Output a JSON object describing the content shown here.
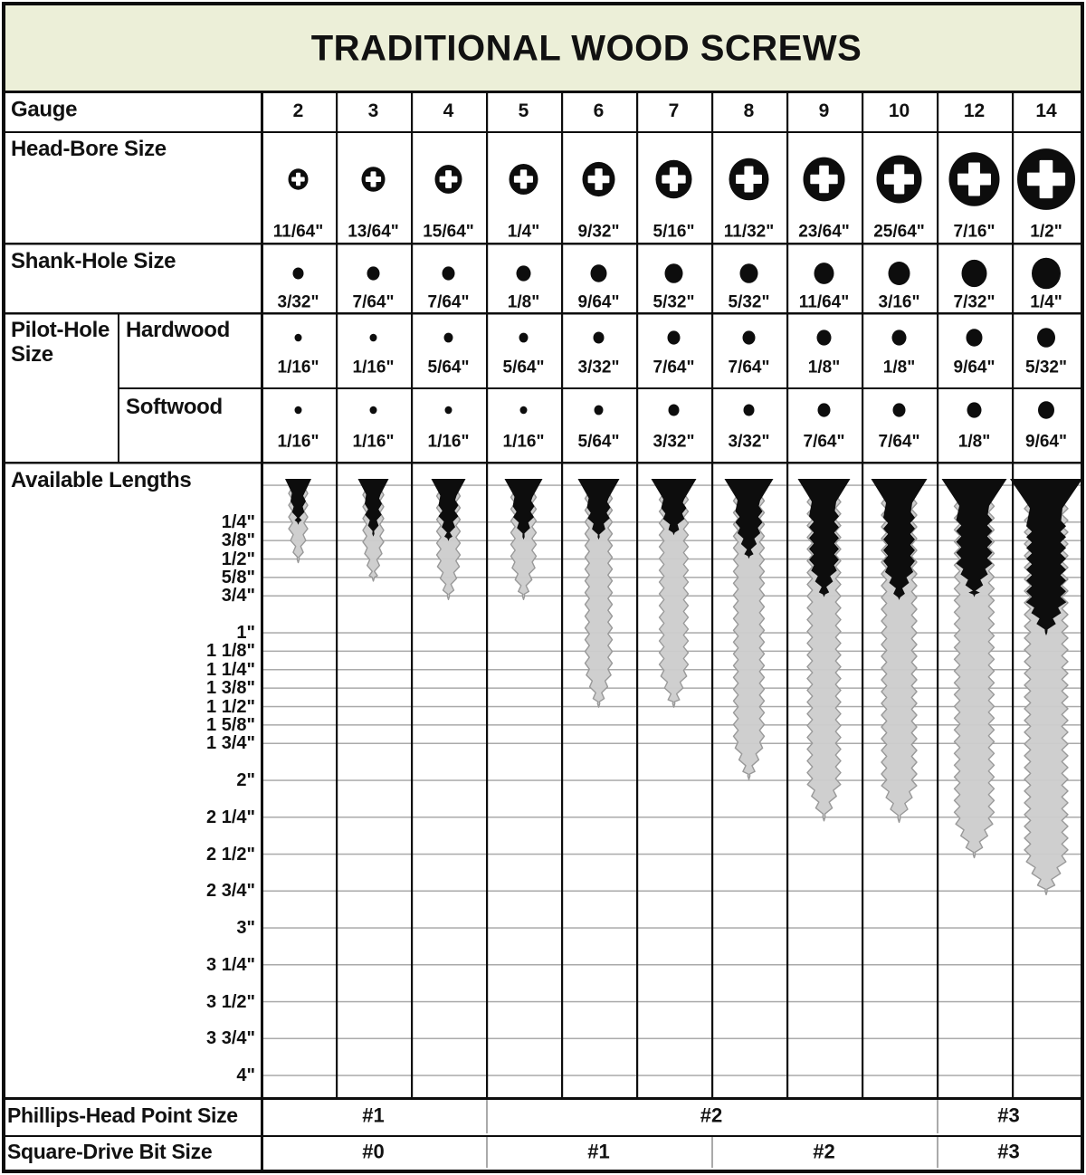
{
  "title": "TRADITIONAL WOOD SCREWS",
  "colors": {
    "band": "#ECEFD8",
    "ink": "#0d0d0d",
    "thread_fill": "#CCCCCC",
    "thread_stroke": "#999999",
    "gridline": "#AAAAAA",
    "icon_black": "#0d0d0d",
    "icon_cross": "#FFFFFF"
  },
  "labels": {
    "gauge": "Gauge",
    "head_bore": "Head-Bore Size",
    "shank_hole": "Shank-Hole Size",
    "pilot_hole": "Pilot-Hole Size",
    "hardwood": "Hardwood",
    "softwood": "Softwood",
    "available_lengths": "Available Lengths",
    "phillips": "Phillips-Head Point Size",
    "square": "Square-Drive Bit Size"
  },
  "chart_data": {
    "type": "table",
    "title": "TRADITIONAL WOOD SCREWS",
    "gauges": [
      "2",
      "3",
      "4",
      "5",
      "6",
      "7",
      "8",
      "9",
      "10",
      "12",
      "14"
    ],
    "head_bore_size": [
      "11/64\"",
      "13/64\"",
      "15/64\"",
      "1/4\"",
      "9/32\"",
      "5/16\"",
      "11/32\"",
      "23/64\"",
      "25/64\"",
      "7/16\"",
      "1/2\""
    ],
    "head_bore_in": [
      0.171875,
      0.203125,
      0.234375,
      0.25,
      0.28125,
      0.3125,
      0.34375,
      0.359375,
      0.390625,
      0.4375,
      0.5
    ],
    "shank_hole_size": [
      "3/32\"",
      "7/64\"",
      "7/64\"",
      "1/8\"",
      "9/64\"",
      "5/32\"",
      "5/32\"",
      "11/64\"",
      "3/16\"",
      "7/32\"",
      "1/4\""
    ],
    "shank_hole_in": [
      0.09375,
      0.109375,
      0.109375,
      0.125,
      0.140625,
      0.15625,
      0.15625,
      0.171875,
      0.1875,
      0.21875,
      0.25
    ],
    "pilot_hardwood_size": [
      "1/16\"",
      "1/16\"",
      "5/64\"",
      "5/64\"",
      "3/32\"",
      "7/64\"",
      "7/64\"",
      "1/8\"",
      "1/8\"",
      "9/64\"",
      "5/32\""
    ],
    "pilot_hardwood_in": [
      0.0625,
      0.0625,
      0.078125,
      0.078125,
      0.09375,
      0.109375,
      0.109375,
      0.125,
      0.125,
      0.140625,
      0.15625
    ],
    "pilot_softwood_size": [
      "1/16\"",
      "1/16\"",
      "1/16\"",
      "1/16\"",
      "5/64\"",
      "3/32\"",
      "3/32\"",
      "7/64\"",
      "7/64\"",
      "1/8\"",
      "9/64\""
    ],
    "pilot_softwood_in": [
      0.0625,
      0.0625,
      0.0625,
      0.0625,
      0.078125,
      0.09375,
      0.09375,
      0.109375,
      0.109375,
      0.125,
      0.140625
    ],
    "length_scale_labels": [
      "1/4\"",
      "3/8\"",
      "1/2\"",
      "5/8\"",
      "3/4\"",
      "1\"",
      "1 1/8\"",
      "1 1/4\"",
      "1 3/8\"",
      "1 1/2\"",
      "1 5/8\"",
      "1 3/4\"",
      "2\"",
      "2 1/4\"",
      "2 1/2\"",
      "2 3/4\"",
      "3\"",
      "3 1/4\"",
      "3 1/2\"",
      "3 3/4\"",
      "4\""
    ],
    "length_scale_in": [
      0.25,
      0.375,
      0.5,
      0.625,
      0.75,
      1,
      1.125,
      1.25,
      1.375,
      1.5,
      1.625,
      1.75,
      2,
      2.25,
      2.5,
      2.75,
      3,
      3.25,
      3.5,
      3.75,
      4
    ],
    "screws": [
      {
        "gauge": "2",
        "min_in": 0.25,
        "max_in": 0.5
      },
      {
        "gauge": "3",
        "min_in": 0.33,
        "max_in": 0.625
      },
      {
        "gauge": "4",
        "min_in": 0.36,
        "max_in": 0.75
      },
      {
        "gauge": "5",
        "min_in": 0.35,
        "max_in": 0.75
      },
      {
        "gauge": "6",
        "min_in": 0.35,
        "max_in": 1.48
      },
      {
        "gauge": "7",
        "min_in": 0.32,
        "max_in": 1.48
      },
      {
        "gauge": "8",
        "min_in": 0.48,
        "max_in": 1.97
      },
      {
        "gauge": "9",
        "min_in": 0.74,
        "max_in": 2.25
      },
      {
        "gauge": "10",
        "min_in": 0.76,
        "max_in": 2.26
      },
      {
        "gauge": "12",
        "min_in": 0.74,
        "max_in": 2.5
      },
      {
        "gauge": "14",
        "min_in": 1.0,
        "max_in": 2.75
      }
    ],
    "phillips_spans": [
      {
        "label": "#1",
        "cols": 3
      },
      {
        "label": "#2",
        "cols": 6
      },
      {
        "label": "#3",
        "cols": 2
      }
    ],
    "square_spans": [
      {
        "label": "#0",
        "cols": 3
      },
      {
        "label": "#1",
        "cols": 3
      },
      {
        "label": "#2",
        "cols": 3
      },
      {
        "label": "#3",
        "cols": 2
      }
    ]
  }
}
